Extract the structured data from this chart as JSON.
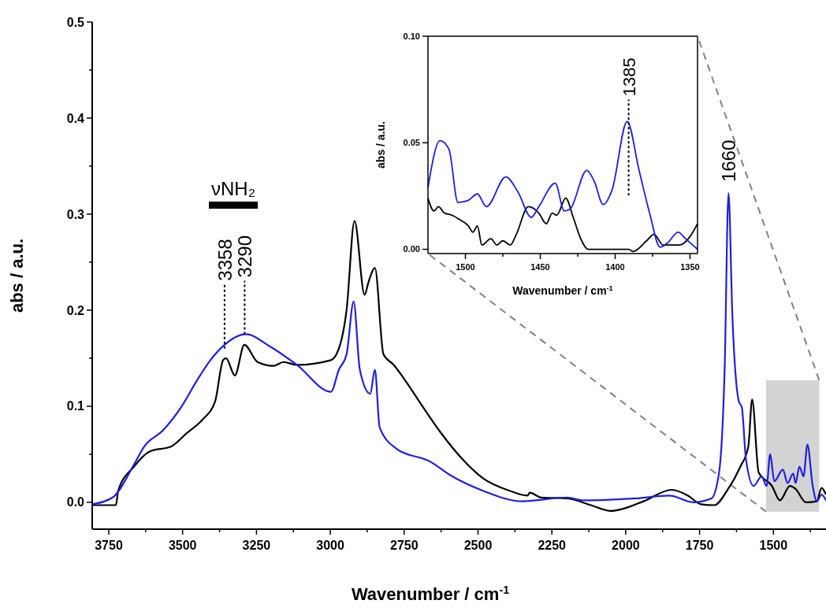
{
  "chart_data": [
    {
      "type": "line",
      "xlabel": "Wavenumber / cm$^{-1}$",
      "ylabel": "abs / a.u.",
      "xlim": [
        3806,
        1322
      ],
      "ylim": [
        -0.028,
        0.5
      ],
      "xticks": [
        3750,
        {
          "value": 3625,
          "label": null
        },
        3500,
        {
          "value": 3375,
          "label": null
        },
        3250,
        {
          "value": 3125,
          "label": null
        },
        3000,
        {
          "value": 2875,
          "label": null
        },
        2750,
        {
          "value": 2625,
          "label": null
        },
        2500,
        {
          "value": 2375,
          "label": null
        },
        2250,
        {
          "value": 2125,
          "label": null
        },
        2000,
        {
          "value": 1875,
          "label": null
        },
        1750,
        {
          "value": 1625,
          "label": null
        },
        1500,
        {
          "value": 1375,
          "label": null
        }
      ],
      "yticks": [
        {
          "value": 0,
          "label": "0.0"
        },
        {
          "value": 0.05,
          "label": null
        },
        {
          "value": 0.1,
          "label": "0.1"
        },
        {
          "value": 0.15,
          "label": null
        },
        {
          "value": 0.2,
          "label": "0.2"
        },
        {
          "value": 0.25,
          "label": null
        },
        {
          "value": 0.3,
          "label": "0.3"
        },
        {
          "value": 0.35,
          "label": null
        },
        {
          "value": 0.4,
          "label": "0.4"
        },
        {
          "value": 0.45,
          "label": null
        },
        {
          "value": 0.5,
          "label": "0.5"
        }
      ],
      "marker": "none",
      "line_style": "solid",
      "series": [
        {
          "color": "#000000",
          "x": [
            3806,
            3726,
            3718,
            3665,
            3611,
            3539,
            3486,
            3433,
            3390,
            3363,
            3353,
            3323,
            3291,
            3246,
            3193,
            3158,
            3113,
            2998,
            2971,
            2945,
            2918,
            2884,
            2870,
            2849,
            2820,
            2785,
            2740,
            2686,
            2625,
            2553,
            2483,
            2393,
            2332,
            2325,
            2286,
            2198,
            2118,
            2050,
            2012,
            1940,
            1844,
            1790,
            1745,
            1700,
            1657,
            1612,
            1585,
            1572,
            1550,
            1505,
            1478,
            1444,
            1425,
            1390,
            1353,
            1337,
            1322
          ],
          "values": [
            -0.003,
            -0.003,
            0.012,
            0.037,
            0.053,
            0.058,
            0.072,
            0.086,
            0.105,
            0.148,
            0.15,
            0.132,
            0.164,
            0.146,
            0.142,
            0.146,
            0.143,
            0.148,
            0.16,
            0.2,
            0.293,
            0.216,
            0.23,
            0.244,
            0.154,
            0.143,
            0.124,
            0.099,
            0.072,
            0.045,
            0.025,
            0.012,
            0.007,
            0.01,
            0.005,
            0.004,
            -0.003,
            -0.009,
            -0.007,
            0.001,
            0.013,
            0.007,
            -0.002,
            -0.003,
            0.012,
            0.037,
            0.058,
            0.107,
            0.031,
            0.017,
            0.002,
            0.017,
            0.014,
            0,
            0.001,
            0.015,
            0.008
          ]
        },
        {
          "color": "#1f1fdc",
          "x": [
            3806,
            3737,
            3665,
            3630,
            3566,
            3505,
            3451,
            3406,
            3358,
            3286,
            3203,
            3113,
            2998,
            2971,
            2945,
            2921,
            2900,
            2865,
            2849,
            2833,
            2777,
            2660,
            2598,
            2483,
            2350,
            2198,
            2145,
            1966,
            1852,
            1772,
            1710,
            1684,
            1665,
            1652,
            1639,
            1617,
            1607,
            1593,
            1567,
            1540,
            1523,
            1511,
            1497,
            1468,
            1452,
            1433,
            1425,
            1412,
            1398,
            1385,
            1367,
            1353,
            1337,
            1322
          ],
          "values": [
            -0.002,
            0.005,
            0.039,
            0.058,
            0.075,
            0.099,
            0.127,
            0.148,
            0.164,
            0.175,
            0.162,
            0.143,
            0.115,
            0.138,
            0.154,
            0.209,
            0.138,
            0.113,
            0.138,
            0.078,
            0.056,
            0.042,
            0.029,
            0.012,
            0.001,
            0.005,
            0.002,
            0.004,
            0.007,
            0,
            0.004,
            0.031,
            0.14,
            0.322,
            0.195,
            0.105,
            0.099,
            0.045,
            0.017,
            0.027,
            0.017,
            0.05,
            0.022,
            0.034,
            0.02,
            0.03,
            0.02,
            0.037,
            0.027,
            0.06,
            0.017,
            0.001,
            0.008,
            0.002
          ]
        }
      ],
      "annotations": [
        "νNH₂",
        {
          "text": "3358",
          "x": 3358,
          "y": 0.16
        },
        {
          "text": "3290",
          "x": 3290,
          "y": 0.175
        },
        {
          "text": "1660",
          "x": 1652,
          "y": 0.322
        }
      ]
    },
    {
      "type": "line",
      "xlabel": "Wavenumber / cm$^{-1}$",
      "ylabel": "abs / a.u.",
      "xlim": [
        1525,
        1345
      ],
      "ylim": [
        -0.002,
        0.1
      ],
      "xticks": [
        1500,
        {
          "value": 1475,
          "label": null
        },
        1450,
        {
          "value": 1425,
          "label": null
        },
        1400,
        {
          "value": 1375,
          "label": null
        },
        1350
      ],
      "yticks": [
        {
          "value": 0,
          "label": "0.00"
        },
        {
          "value": 0.05,
          "label": "0.05"
        },
        {
          "value": 0.1,
          "label": "0.10"
        }
      ],
      "marker": "none",
      "line_style": "solid",
      "series": [
        {
          "color": "#000000",
          "x": [
            1525,
            1521,
            1518,
            1514,
            1509,
            1504,
            1498,
            1495,
            1492,
            1489,
            1483,
            1479,
            1475,
            1470,
            1466,
            1458,
            1451,
            1446,
            1442,
            1439,
            1433,
            1428,
            1423,
            1418,
            1409,
            1391,
            1388,
            1379,
            1374,
            1368,
            1357,
            1350,
            1345
          ],
          "values": [
            0.024,
            0.018,
            0.02,
            0.017,
            0.016,
            0.014,
            0.011,
            0.008,
            0.011,
            0.002,
            0.005,
            0.002,
            0.004,
            0.002,
            0.007,
            0.02,
            0.017,
            0.012,
            0.017,
            0.016,
            0.024,
            0.015,
            0.005,
            0,
            0,
            0,
            -0.001,
            0.004,
            0.007,
            0.002,
            0.002,
            0.006,
            0.012
          ]
        },
        {
          "color": "#1f1fdc",
          "x": [
            1525,
            1517,
            1511,
            1505,
            1498,
            1492,
            1486,
            1473,
            1465,
            1456,
            1451,
            1440,
            1434,
            1430,
            1419,
            1414,
            1408,
            1402,
            1392,
            1384,
            1377,
            1370,
            1365,
            1358,
            1353,
            1345
          ],
          "values": [
            0.029,
            0.051,
            0.047,
            0.022,
            0.023,
            0.026,
            0.02,
            0.034,
            0.027,
            0.015,
            0.02,
            0.031,
            0.018,
            0.019,
            0.037,
            0.032,
            0.021,
            0.028,
            0.06,
            0.037,
            0.017,
            0.001,
            0.003,
            0.008,
            0.005,
            0
          ]
        }
      ],
      "annotations": [
        {
          "text": "1385",
          "x": 1391,
          "y": 0.06
        }
      ]
    }
  ]
}
